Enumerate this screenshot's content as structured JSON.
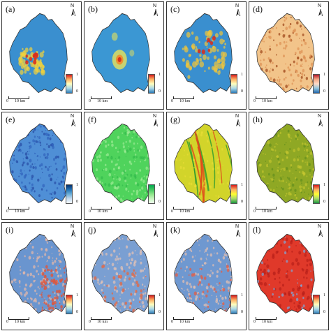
{
  "panels": [
    {
      "label": "(a)",
      "north": "N",
      "legend_high": "1",
      "legend_low": "0",
      "scale_zero": "0",
      "scale_dist": "10 km",
      "gradient": [
        "#d7191c",
        "#fdae61",
        "#ffffbf",
        "#abd9e9",
        "#2c7bb6"
      ],
      "fill": "#3a8fcf",
      "spot": "#f2d13a",
      "hot": "#d7301f",
      "style": "hotspot-west"
    },
    {
      "label": "(b)",
      "north": "N",
      "legend_high": "1",
      "legend_low": "0",
      "scale_zero": "0",
      "scale_dist": "10 km",
      "gradient": [
        "#d7191c",
        "#fdae61",
        "#ffffbf",
        "#abd9e9",
        "#2c7bb6"
      ],
      "fill": "#3b97d3",
      "spot": "#e8e25a",
      "hot": "#d7301f",
      "style": "single-center"
    },
    {
      "label": "(c)",
      "north": "N",
      "legend_high": "1",
      "legend_low": "0",
      "scale_zero": "0",
      "scale_dist": "10 km",
      "gradient": [
        "#d7191c",
        "#fdae61",
        "#ffffbf",
        "#abd9e9",
        "#2c7bb6"
      ],
      "fill": "#3a8fcf",
      "spot": "#f0c43a",
      "hot": "#d7301f",
      "style": "scattered"
    },
    {
      "label": "(d)",
      "north": "N",
      "legend_high": "1",
      "legend_low": "0",
      "scale_zero": "0",
      "scale_dist": "10 km",
      "gradient": [
        "#b2182b",
        "#f4a582",
        "#fddbc7",
        "#92c5de",
        "#2166ac"
      ],
      "fill": "#f2c48a",
      "spot": "#d9874a",
      "hot": "#8c2d04",
      "style": "speckle"
    },
    {
      "label": "(e)",
      "north": "N",
      "legend_high": "1",
      "legend_low": "0",
      "scale_zero": "0",
      "scale_dist": "10 km",
      "gradient": [
        "#08306b",
        "#2171b5",
        "#6baed6",
        "#c6dbef",
        "#f7fbff"
      ],
      "fill": "#4f8fd6",
      "spot": "#2b5bb8",
      "hot": "#1f3f9a",
      "style": "speckle"
    },
    {
      "label": "(f)",
      "north": "N",
      "legend_high": "1",
      "legend_low": "0",
      "scale_zero": "0",
      "scale_dist": "10 km",
      "gradient": [
        "#00a651",
        "#41c85f",
        "#8ee68a",
        "#c9f5c0",
        "#f0fff0"
      ],
      "fill": "#4fd35c",
      "spot": "#a8ef9c",
      "hot": "#2fb84a",
      "style": "speckle"
    },
    {
      "label": "(g)",
      "north": "N",
      "legend_high": "1",
      "legend_low": "0",
      "scale_zero": "0",
      "scale_dist": "10 km",
      "gradient": [
        "#d7191c",
        "#fdae61",
        "#ffff33",
        "#a6d96a",
        "#1a9641"
      ],
      "fill": "#d2d42a",
      "spot": "#f0e03a",
      "hot": "#e04a1a",
      "style": "ridges"
    },
    {
      "label": "(h)",
      "north": "N",
      "legend_high": "1",
      "legend_low": "0",
      "scale_zero": "0",
      "scale_dist": "10 km",
      "gradient": [
        "#d7191c",
        "#fdae61",
        "#ffff33",
        "#a6d96a",
        "#1a9641"
      ],
      "fill": "#8fa824",
      "spot": "#c8c830",
      "hot": "#5c8a1c",
      "style": "speckle"
    },
    {
      "label": "(i)",
      "north": "N",
      "legend_high": "1",
      "legend_low": "0",
      "scale_zero": "0",
      "scale_dist": "10 km",
      "gradient": [
        "#d7191c",
        "#fdae61",
        "#ffffbf",
        "#abd9e9",
        "#2c7bb6"
      ],
      "fill": "#6a95cf",
      "spot": "#e8b9a8",
      "hot": "#e0553a",
      "style": "mixed-east"
    },
    {
      "label": "(j)",
      "north": "N",
      "legend_high": "1",
      "legend_low": "0",
      "scale_zero": "0",
      "scale_dist": "10 km",
      "gradient": [
        "#d7191c",
        "#fdae61",
        "#ffffbf",
        "#abd9e9",
        "#2c7bb6"
      ],
      "fill": "#7a9fd2",
      "spot": "#e6c3b5",
      "hot": "#e06a4a",
      "style": "mixed"
    },
    {
      "label": "(k)",
      "north": "N",
      "legend_high": "1",
      "legend_low": "0",
      "scale_zero": "0",
      "scale_dist": "10 km",
      "gradient": [
        "#d7191c",
        "#fdae61",
        "#ffffbf",
        "#abd9e9",
        "#2c7bb6"
      ],
      "fill": "#6f98d0",
      "spot": "#e6c0b0",
      "hot": "#e0604a",
      "style": "mixed"
    },
    {
      "label": "(l)",
      "north": "N",
      "legend_high": "1",
      "legend_low": "0",
      "scale_zero": "0",
      "scale_dist": "10 km",
      "gradient": [
        "#d7191c",
        "#fdae61",
        "#ffffbf",
        "#abd9e9",
        "#2c7bb6"
      ],
      "fill": "#e0392a",
      "spot": "#f08070",
      "hot": "#b81f1a",
      "style": "red-dominant"
    }
  ]
}
